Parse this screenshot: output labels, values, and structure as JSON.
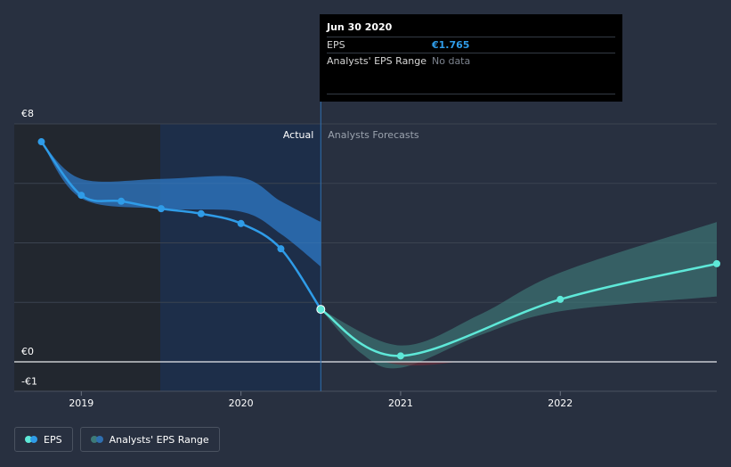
{
  "chart_data": {
    "type": "line",
    "currency_prefix": "€",
    "y_ticks": [
      {
        "value": 8,
        "label": "€8"
      },
      {
        "value": 0,
        "label": "€0"
      },
      {
        "value": -1,
        "label": "-€1"
      }
    ],
    "x_ticks": [
      {
        "value": 2019.0,
        "label": "2019"
      },
      {
        "value": 2020.0,
        "label": "2020"
      },
      {
        "value": 2021.0,
        "label": "2021"
      },
      {
        "value": 2022.0,
        "label": "2022"
      }
    ],
    "ylim": [
      -1,
      8
    ],
    "xlim": [
      2018.58,
      2022.98
    ],
    "divider_x": 2020.5,
    "section_labels": {
      "actual": "Actual",
      "forecast": "Analysts Forecasts"
    },
    "series": [
      {
        "name": "EPS",
        "kind": "actual",
        "color": "#2f9ce8",
        "points": [
          {
            "x": 2018.75,
            "y": 7.4
          },
          {
            "x": 2019.0,
            "y": 5.6
          },
          {
            "x": 2019.25,
            "y": 5.4
          },
          {
            "x": 2019.5,
            "y": 5.15
          },
          {
            "x": 2019.75,
            "y": 4.98
          },
          {
            "x": 2020.0,
            "y": 4.65
          },
          {
            "x": 2020.25,
            "y": 3.8
          },
          {
            "x": 2020.5,
            "y": 1.765
          }
        ]
      },
      {
        "name": "EPS",
        "kind": "forecast",
        "color": "#5ee8d8",
        "points": [
          {
            "x": 2020.5,
            "y": 1.765
          },
          {
            "x": 2021.0,
            "y": 0.2
          },
          {
            "x": 2022.0,
            "y": 2.1
          },
          {
            "x": 2022.98,
            "y": 3.3
          }
        ]
      }
    ],
    "ranges": [
      {
        "name": "Analysts' EPS Range",
        "kind": "past",
        "color": "#2f7fd0",
        "upper": [
          {
            "x": 2018.75,
            "y": 7.4
          },
          {
            "x": 2019.0,
            "y": 6.15
          },
          {
            "x": 2019.5,
            "y": 6.15
          },
          {
            "x": 2020.0,
            "y": 6.2
          },
          {
            "x": 2020.25,
            "y": 5.4
          },
          {
            "x": 2020.5,
            "y": 4.7
          }
        ],
        "lower": [
          {
            "x": 2018.75,
            "y": 7.4
          },
          {
            "x": 2019.0,
            "y": 5.5
          },
          {
            "x": 2019.5,
            "y": 5.15
          },
          {
            "x": 2020.0,
            "y": 5.05
          },
          {
            "x": 2020.25,
            "y": 4.3
          },
          {
            "x": 2020.5,
            "y": 3.2
          }
        ]
      },
      {
        "name": "Analysts' EPS Range",
        "kind": "forecast",
        "color": "#3d7a78",
        "upper": [
          {
            "x": 2020.5,
            "y": 1.765
          },
          {
            "x": 2021.0,
            "y": 0.55
          },
          {
            "x": 2021.5,
            "y": 1.6
          },
          {
            "x": 2022.0,
            "y": 3.0
          },
          {
            "x": 2022.98,
            "y": 4.7
          }
        ],
        "lower": [
          {
            "x": 2020.5,
            "y": 1.765
          },
          {
            "x": 2020.75,
            "y": 0.3
          },
          {
            "x": 2021.0,
            "y": -0.2
          },
          {
            "x": 2021.5,
            "y": 0.9
          },
          {
            "x": 2022.0,
            "y": 1.7
          },
          {
            "x": 2022.98,
            "y": 2.2
          }
        ]
      }
    ],
    "negative_area_color": "#7a2e3a"
  },
  "tooltip": {
    "date": "Jun 30 2020",
    "rows": [
      {
        "label": "EPS",
        "value": "€1.765"
      },
      {
        "label": "Analysts' EPS Range",
        "value": "No data"
      }
    ]
  },
  "legend": {
    "eps_label": "EPS",
    "range_label": "Analysts' EPS Range"
  },
  "colors": {
    "background": "#283040",
    "eps_line": "#2f9ce8",
    "forecast_line": "#5ee8d8",
    "past_band": "#2f7fd0",
    "forecast_band": "#3d7a78"
  }
}
